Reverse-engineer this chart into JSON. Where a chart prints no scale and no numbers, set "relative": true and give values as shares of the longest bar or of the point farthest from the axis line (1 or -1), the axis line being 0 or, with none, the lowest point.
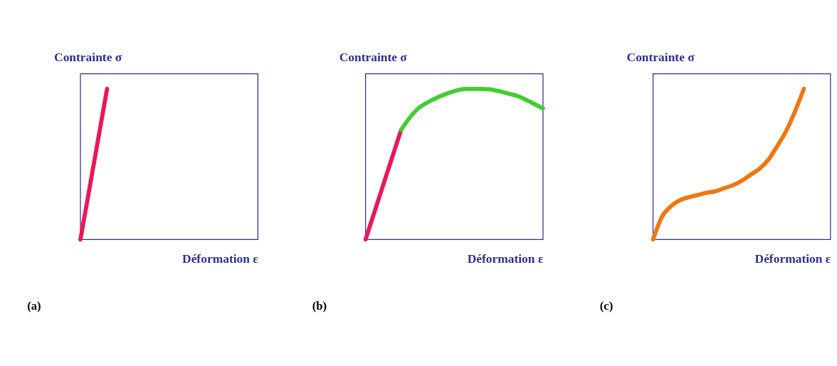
{
  "chart_data": [
    {
      "type": "line",
      "relative": true,
      "tick_labels": false,
      "grid": false,
      "ylabel": "Contrainte σ",
      "xlabel": "Déformation ε",
      "annotations": [
        "(a)"
      ],
      "categories": [
        null,
        null,
        null,
        null,
        null,
        null,
        null,
        null,
        null,
        null,
        null,
        null,
        null,
        null,
        null,
        null,
        null,
        null,
        null,
        null,
        null
      ],
      "series": [
        {
          "color": "#e8185a",
          "values": [
            0,
            0.333,
            0.667,
            1,
            null,
            null,
            null,
            null,
            null,
            null,
            null,
            null,
            null,
            null,
            null,
            null,
            null,
            null,
            null,
            null,
            null
          ]
        }
      ]
    },
    {
      "type": "line",
      "relative": true,
      "tick_labels": false,
      "grid": false,
      "ylabel": "Contrainte σ",
      "xlabel": "Déformation ε",
      "annotations": [
        "(b)"
      ],
      "categories": [
        null,
        null,
        null,
        null,
        null,
        null,
        null,
        null,
        null,
        null,
        null,
        null,
        null,
        null,
        null,
        null,
        null,
        null,
        null,
        null,
        null
      ],
      "series": [
        {
          "color": "#e8185a",
          "values": [
            0,
            0.182,
            0.364,
            0.545,
            0.727,
            null,
            null,
            null,
            null,
            null,
            null,
            null,
            null,
            null,
            null,
            null,
            null,
            null,
            null,
            null,
            null
          ]
        },
        {
          "color": "#44cc33",
          "values": [
            null,
            null,
            null,
            null,
            0.727,
            0.81,
            0.873,
            0.91,
            0.94,
            0.965,
            0.985,
            0.998,
            1.0,
            1.0,
            0.997,
            0.985,
            0.97,
            0.955,
            0.93,
            0.9,
            0.87
          ]
        }
      ]
    },
    {
      "type": "line",
      "relative": true,
      "tick_labels": false,
      "grid": false,
      "ylabel": "Contrainte σ",
      "xlabel": "Déformation ε",
      "annotations": [
        "(c)"
      ],
      "categories": [
        null,
        null,
        null,
        null,
        null,
        null,
        null,
        null,
        null,
        null,
        null,
        null,
        null,
        null,
        null,
        null,
        null,
        null,
        null,
        null,
        null
      ],
      "series": [
        {
          "color": "#ee7711",
          "values": [
            0,
            0.15,
            0.22,
            0.26,
            0.28,
            0.295,
            0.31,
            0.32,
            0.34,
            0.36,
            0.39,
            0.43,
            0.47,
            0.53,
            0.62,
            0.72,
            0.85,
            1.0,
            null,
            null,
            null
          ]
        }
      ]
    }
  ]
}
